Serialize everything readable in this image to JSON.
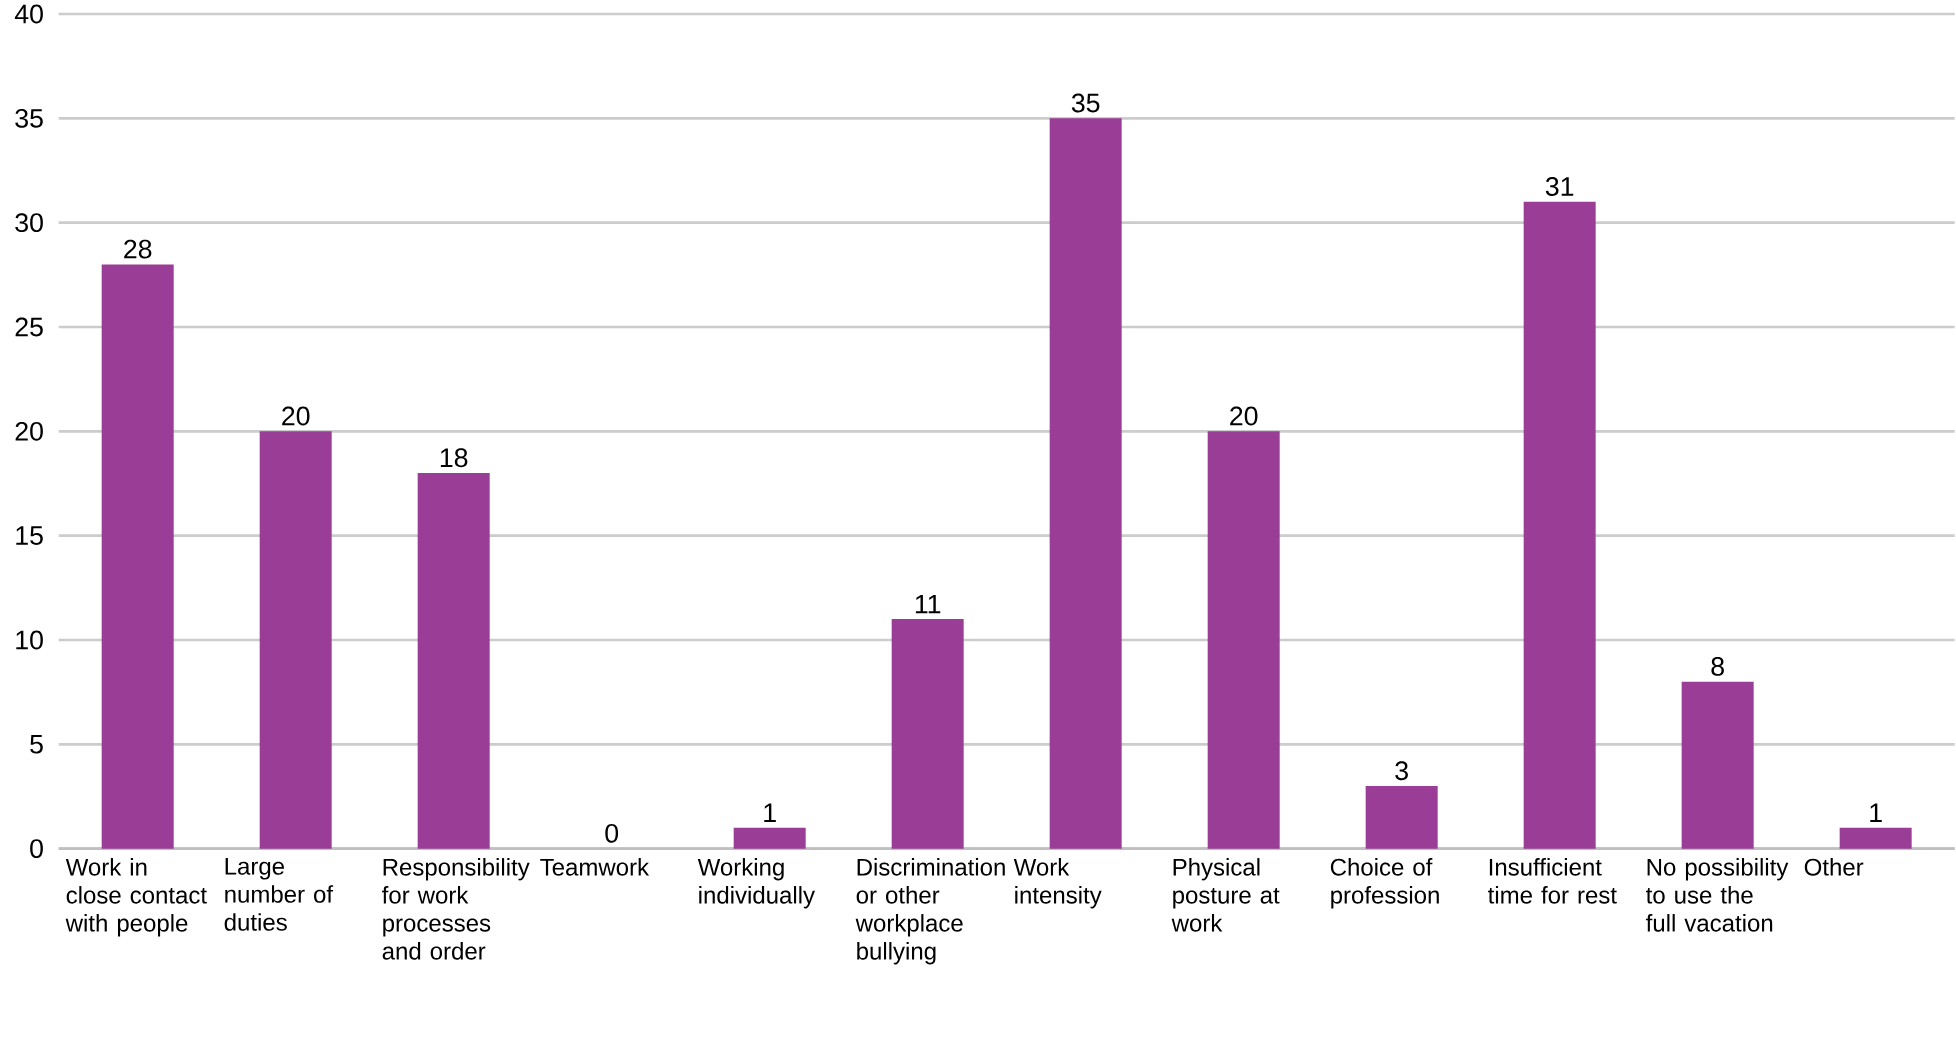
{
  "chart_data": {
    "type": "bar",
    "categories": [
      "Work in close contact with people",
      "Large number of duties",
      "Responsibility for work processes and order",
      "Teamwork",
      "Working individually",
      "Discrimination or other workplace bullying",
      "Work intensity",
      "Physical posture at work",
      "Choice of profession",
      "Insufficient time for rest",
      "No possibility to use the full vacation",
      "Other"
    ],
    "values": [
      28,
      20,
      18,
      0,
      1,
      11,
      35,
      20,
      3,
      31,
      8,
      1
    ],
    "color": "#993d96",
    "ylim": [
      0,
      40
    ],
    "yticks": [
      0,
      5,
      10,
      15,
      20,
      25,
      30,
      35,
      40
    ],
    "grid": "y",
    "data_labels": true
  }
}
